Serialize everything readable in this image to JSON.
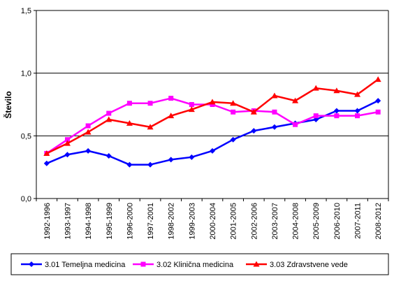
{
  "chart_data": {
    "type": "line",
    "ylabel": "Število",
    "ylim": [
      0,
      1.5
    ],
    "yticks": [
      "0,0",
      "0,5",
      "1,0",
      "1,5"
    ],
    "grid": "horizontal",
    "legend_position": "bottom",
    "categories": [
      "1992-1996",
      "1993-1997",
      "1994-1998",
      "1995-1999",
      "1996-2000",
      "1997-2001",
      "1998-2002",
      "1999-2003",
      "2000-2004",
      "2001-2005",
      "2002-2006",
      "2003-2007",
      "2004-2008",
      "2005-2009",
      "2006-2010",
      "2007-2011",
      "2008-2012"
    ],
    "series": [
      {
        "name": "3.01 Temeljna medicina",
        "color": "#0000FF",
        "marker": "diamond",
        "values": [
          0.28,
          0.35,
          0.38,
          0.34,
          0.27,
          0.27,
          0.31,
          0.33,
          0.38,
          0.47,
          0.54,
          0.57,
          0.6,
          0.63,
          0.7,
          0.7,
          0.78
        ]
      },
      {
        "name": "3.02 Klinična medicina",
        "color": "#FF00FF",
        "marker": "square",
        "values": [
          0.36,
          0.47,
          0.58,
          0.68,
          0.76,
          0.76,
          0.8,
          0.75,
          0.75,
          0.69,
          0.7,
          0.69,
          0.59,
          0.66,
          0.66,
          0.66,
          0.69
        ]
      },
      {
        "name": "3.03 Zdravstvene vede",
        "color": "#FF0000",
        "marker": "triangle",
        "values": [
          0.36,
          0.44,
          0.53,
          0.63,
          0.6,
          0.57,
          0.66,
          0.71,
          0.77,
          0.76,
          0.69,
          0.82,
          0.78,
          0.88,
          0.86,
          0.83,
          0.95
        ]
      }
    ]
  }
}
